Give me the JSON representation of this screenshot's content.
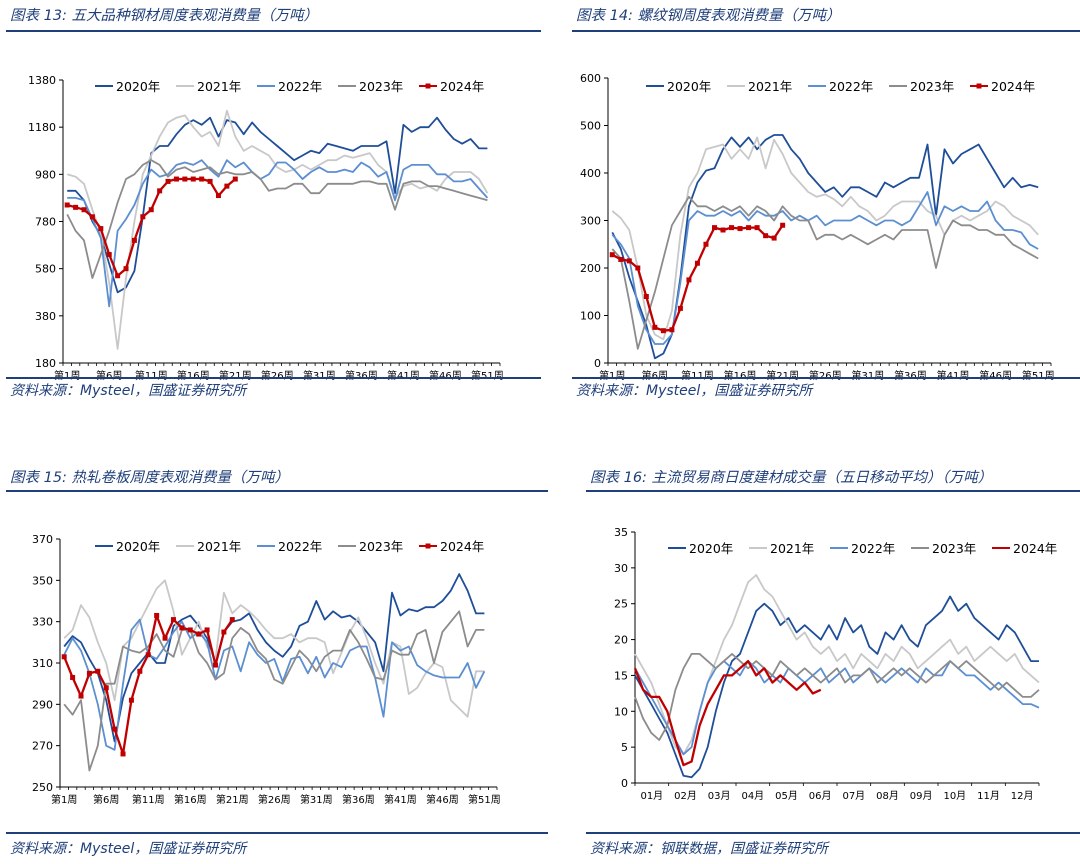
{
  "panels": [
    {
      "title": "图表 13:  五大品种钢材周度表观消费量（万吨）",
      "source": "资料来源：Mysteel，国盛证券研究所"
    },
    {
      "title": "图表 14:  螺纹钢周度表观消费量（万吨）",
      "source": "资料来源：Mysteel，国盛证券研究所"
    },
    {
      "title": "图表 15:  热轧卷板周度表观消费量（万吨）",
      "source": "资料来源：Mysteel，国盛证券研究所"
    },
    {
      "title": "图表 16:  主流贸易商日度建材成交量（五日移动平均）（万吨）",
      "source": "资料来源：钢联数据，国盛证券研究所"
    }
  ],
  "series_colors": {
    "2020年": "#1f4e99",
    "2021年": "#c8c8c8",
    "2022年": "#5b8fd1",
    "2023年": "#8c8c8c",
    "2024年": "#c00000"
  },
  "chart_data": [
    {
      "type": "line",
      "title": "图表 13:  五大品种钢材周度表观消费量（万吨）",
      "ylim": [
        180,
        1380
      ],
      "yticks": [
        180,
        380,
        580,
        780,
        980,
        1180,
        1380
      ],
      "xticks": [
        "第1周",
        "第6周",
        "第11周",
        "第16周",
        "第21周",
        "第26周",
        "第31周",
        "第36周",
        "第41周",
        "第46周",
        "第51周"
      ],
      "x_count": 52,
      "legend": "top",
      "series": [
        {
          "name": "2020年",
          "values": [
            910,
            910,
            870,
            780,
            720,
            600,
            480,
            500,
            570,
            800,
            1070,
            1100,
            1100,
            1150,
            1190,
            1210,
            1190,
            1220,
            1140,
            1210,
            1200,
            1150,
            1200,
            1160,
            1130,
            1100,
            1070,
            1040,
            1060,
            1080,
            1070,
            1110,
            1100,
            1090,
            1080,
            1100,
            1100,
            1100,
            1120,
            900,
            1190,
            1160,
            1180,
            1180,
            1220,
            1170,
            1130,
            1110,
            1130,
            1090,
            1090
          ]
        },
        {
          "name": "2021年",
          "values": [
            980,
            970,
            940,
            830,
            730,
            520,
            240,
            540,
            780,
            980,
            1060,
            1140,
            1200,
            1220,
            1230,
            1180,
            1140,
            1160,
            1100,
            1250,
            1140,
            1080,
            1100,
            1080,
            1060,
            1010,
            990,
            1000,
            1020,
            1000,
            1020,
            1040,
            1040,
            1060,
            1050,
            1060,
            1070,
            1020,
            990,
            880,
            930,
            940,
            920,
            930,
            910,
            960,
            990,
            990,
            990,
            960,
            900
          ]
        },
        {
          "name": "2022年",
          "values": [
            880,
            880,
            870,
            790,
            710,
            420,
            740,
            790,
            850,
            940,
            1000,
            970,
            980,
            1020,
            1030,
            1020,
            1040,
            1000,
            970,
            1040,
            1010,
            1030,
            990,
            960,
            980,
            1030,
            1030,
            1000,
            960,
            990,
            1010,
            990,
            990,
            1000,
            990,
            1030,
            1010,
            970,
            990,
            870,
            1000,
            1020,
            1020,
            1020,
            980,
            980,
            950,
            950,
            960,
            920,
            880
          ]
        },
        {
          "name": "2023年",
          "values": [
            810,
            740,
            700,
            540,
            640,
            740,
            860,
            960,
            980,
            1020,
            1040,
            1020,
            970,
            1000,
            1010,
            990,
            1000,
            1010,
            980,
            990,
            980,
            980,
            990,
            960,
            910,
            920,
            920,
            940,
            940,
            900,
            900,
            940,
            940,
            940,
            940,
            950,
            950,
            940,
            940,
            830,
            940,
            950,
            950,
            930,
            930,
            920,
            910,
            900,
            890,
            880,
            870
          ]
        },
        {
          "name": "2024年",
          "values": [
            850,
            840,
            830,
            800,
            750,
            640,
            550,
            580,
            700,
            800,
            830,
            910,
            950,
            960,
            960,
            960,
            960,
            950,
            890,
            930,
            960
          ]
        }
      ]
    },
    {
      "type": "line",
      "title": "图表 14:  螺纹钢周度表观消费量（万吨）",
      "ylim": [
        0,
        600
      ],
      "yticks": [
        0,
        100,
        200,
        300,
        400,
        500,
        600
      ],
      "xticks": [
        "第1周",
        "第6周",
        "第11周",
        "第16周",
        "第21周",
        "第26周",
        "第31周",
        "第36周",
        "第41周",
        "第46周",
        "第51周"
      ],
      "x_count": 52,
      "legend": "top",
      "series": [
        {
          "name": "2020年",
          "values": [
            275,
            240,
            180,
            130,
            80,
            10,
            20,
            60,
            180,
            330,
            380,
            405,
            410,
            450,
            475,
            455,
            475,
            450,
            470,
            480,
            480,
            450,
            430,
            400,
            380,
            360,
            370,
            350,
            370,
            370,
            360,
            350,
            380,
            370,
            380,
            390,
            390,
            460,
            310,
            450,
            420,
            440,
            450,
            460,
            430,
            400,
            370,
            390,
            370,
            375,
            370
          ]
        },
        {
          "name": "2021年",
          "values": [
            320,
            305,
            280,
            200,
            100,
            60,
            50,
            110,
            270,
            370,
            400,
            450,
            455,
            460,
            430,
            450,
            430,
            475,
            410,
            470,
            440,
            400,
            380,
            360,
            350,
            355,
            345,
            330,
            350,
            330,
            320,
            300,
            310,
            330,
            340,
            340,
            340,
            320,
            310,
            270,
            300,
            310,
            300,
            310,
            320,
            340,
            330,
            310,
            300,
            290,
            270
          ]
        },
        {
          "name": "2022年",
          "values": [
            270,
            250,
            220,
            120,
            70,
            40,
            40,
            60,
            170,
            300,
            320,
            310,
            310,
            320,
            310,
            320,
            300,
            320,
            310,
            310,
            320,
            300,
            310,
            300,
            310,
            290,
            300,
            300,
            300,
            310,
            300,
            290,
            300,
            300,
            290,
            300,
            330,
            360,
            290,
            330,
            320,
            330,
            320,
            320,
            340,
            300,
            280,
            280,
            275,
            250,
            240
          ]
        },
        {
          "name": "2023年",
          "values": [
            240,
            220,
            130,
            30,
            90,
            150,
            220,
            290,
            320,
            350,
            330,
            330,
            320,
            330,
            320,
            330,
            310,
            330,
            320,
            300,
            330,
            310,
            300,
            300,
            260,
            270,
            270,
            260,
            270,
            260,
            250,
            260,
            270,
            260,
            280,
            280,
            280,
            280,
            200,
            270,
            300,
            290,
            290,
            280,
            280,
            270,
            270,
            250,
            240,
            230,
            220
          ]
        },
        {
          "name": "2024年",
          "values": [
            228,
            218,
            215,
            200,
            140,
            75,
            68,
            70,
            115,
            175,
            210,
            250,
            285,
            280,
            285,
            283,
            285,
            285,
            268,
            263,
            290
          ]
        }
      ]
    },
    {
      "type": "line",
      "title": "图表 15:  热轧卷板周度表观消费量（万吨）",
      "ylim": [
        250,
        370
      ],
      "yticks": [
        250,
        270,
        290,
        310,
        330,
        350,
        370
      ],
      "xticks": [
        "第1周",
        "第6周",
        "第11周",
        "第16周",
        "第21周",
        "第26周",
        "第31周",
        "第36周",
        "第41周",
        "第46周",
        "第51周"
      ],
      "x_count": 52,
      "legend": "top",
      "series": [
        {
          "name": "2020年",
          "values": [
            318,
            323,
            320,
            312,
            305,
            292,
            272,
            293,
            305,
            310,
            315,
            310,
            310,
            328,
            331,
            333,
            328,
            322,
            310,
            325,
            330,
            331,
            334,
            326,
            320,
            316,
            313,
            318,
            328,
            330,
            340,
            331,
            335,
            332,
            333,
            330,
            325,
            320,
            306,
            344,
            333,
            336,
            335,
            337,
            337,
            340,
            345,
            353,
            345,
            334,
            334
          ]
        },
        {
          "name": "2021年",
          "values": [
            322,
            326,
            338,
            332,
            320,
            310,
            292,
            318,
            322,
            330,
            338,
            346,
            350,
            335,
            314,
            322,
            330,
            318,
            312,
            344,
            334,
            338,
            335,
            331,
            326,
            322,
            322,
            324,
            320,
            322,
            322,
            320,
            305,
            315,
            325,
            332,
            322,
            310,
            300,
            320,
            318,
            295,
            298,
            305,
            310,
            308,
            292,
            288,
            284,
            306,
            306
          ]
        },
        {
          "name": "2022年",
          "values": [
            314,
            322,
            316,
            305,
            290,
            270,
            268,
            300,
            326,
            331,
            314,
            312,
            318,
            325,
            330,
            322,
            325,
            320,
            302,
            316,
            318,
            306,
            320,
            314,
            310,
            312,
            301,
            312,
            313,
            305,
            313,
            303,
            310,
            308,
            316,
            318,
            318,
            303,
            284,
            320,
            316,
            318,
            309,
            306,
            304,
            303,
            303,
            303,
            310,
            298,
            306
          ]
        },
        {
          "name": "2023年",
          "values": [
            290,
            285,
            292,
            258,
            270,
            300,
            300,
            318,
            316,
            315,
            318,
            324,
            316,
            313,
            326,
            326,
            315,
            310,
            302,
            305,
            322,
            327,
            324,
            316,
            312,
            302,
            300,
            308,
            316,
            312,
            306,
            313,
            316,
            316,
            326,
            320,
            312,
            303,
            302,
            316,
            314,
            314,
            324,
            326,
            310,
            325,
            330,
            335,
            318,
            326,
            326
          ]
        },
        {
          "name": "2024年",
          "values": [
            313,
            303,
            294,
            305,
            306,
            298,
            278,
            266,
            292,
            306,
            314,
            333,
            322,
            331,
            327,
            326,
            324,
            326,
            309,
            325,
            331
          ]
        }
      ]
    },
    {
      "type": "line",
      "title": "图表 16:  主流贸易商日度建材成交量（五日移动平均）（万吨）",
      "ylim": [
        0,
        35
      ],
      "yticks": [
        0,
        5,
        10,
        15,
        20,
        25,
        30,
        35
      ],
      "xticks": [
        "01月",
        "02月",
        "03月",
        "04月",
        "05月",
        "06月",
        "07月",
        "08月",
        "09月",
        "10月",
        "11月",
        "12月"
      ],
      "x_count": 12,
      "legend": "top",
      "series": [
        {
          "name": "2020年",
          "values": [
            15,
            13,
            11,
            9,
            7,
            4,
            1,
            0.8,
            2,
            5,
            10,
            14,
            17,
            18,
            21,
            24,
            25,
            24,
            22,
            23,
            21,
            22,
            21,
            20,
            22,
            20,
            23,
            21,
            22,
            19,
            18,
            21,
            20,
            22,
            20,
            19,
            22,
            23,
            24,
            26,
            24,
            25,
            23,
            22,
            21,
            20,
            22,
            21,
            19,
            17,
            17
          ]
        },
        {
          "name": "2021年",
          "values": [
            18,
            16,
            14,
            11,
            8,
            5,
            4,
            6,
            10,
            14,
            17,
            20,
            22,
            25,
            28,
            29,
            27,
            26,
            24,
            22,
            20,
            21,
            19,
            18,
            19,
            17,
            18,
            16,
            18,
            17,
            16,
            18,
            17,
            19,
            18,
            16,
            17,
            18,
            19,
            20,
            18,
            19,
            17,
            18,
            19,
            18,
            17,
            18,
            16,
            15,
            14
          ]
        },
        {
          "name": "2022年",
          "values": [
            16,
            14,
            12,
            10,
            8,
            6,
            4,
            5,
            10,
            14,
            16,
            17,
            16,
            15,
            17,
            16,
            14,
            15,
            14,
            16,
            15,
            14,
            15,
            16,
            14,
            15,
            16,
            14,
            15,
            16,
            15,
            14,
            15,
            16,
            15,
            14,
            16,
            15,
            15,
            17,
            16,
            15,
            15,
            14,
            13,
            14,
            13,
            12,
            11,
            11,
            10.5
          ]
        },
        {
          "name": "2023年",
          "values": [
            12,
            9,
            7,
            6,
            8,
            13,
            16,
            18,
            18,
            17,
            16,
            17,
            18,
            17,
            16,
            17,
            16,
            15,
            17,
            16,
            15,
            16,
            15,
            14,
            15,
            16,
            14,
            15,
            15,
            16,
            14,
            15,
            16,
            15,
            16,
            15,
            14,
            15,
            16,
            17,
            16,
            17,
            16,
            15,
            14,
            13,
            14,
            13,
            12,
            12,
            13
          ]
        },
        {
          "name": "2024年",
          "values": [
            16,
            13,
            12,
            12,
            10,
            6,
            2.5,
            3,
            8,
            11,
            13,
            15,
            15,
            16,
            17,
            15,
            16,
            14,
            15,
            14,
            13,
            14,
            12.5,
            13
          ]
        }
      ]
    }
  ]
}
